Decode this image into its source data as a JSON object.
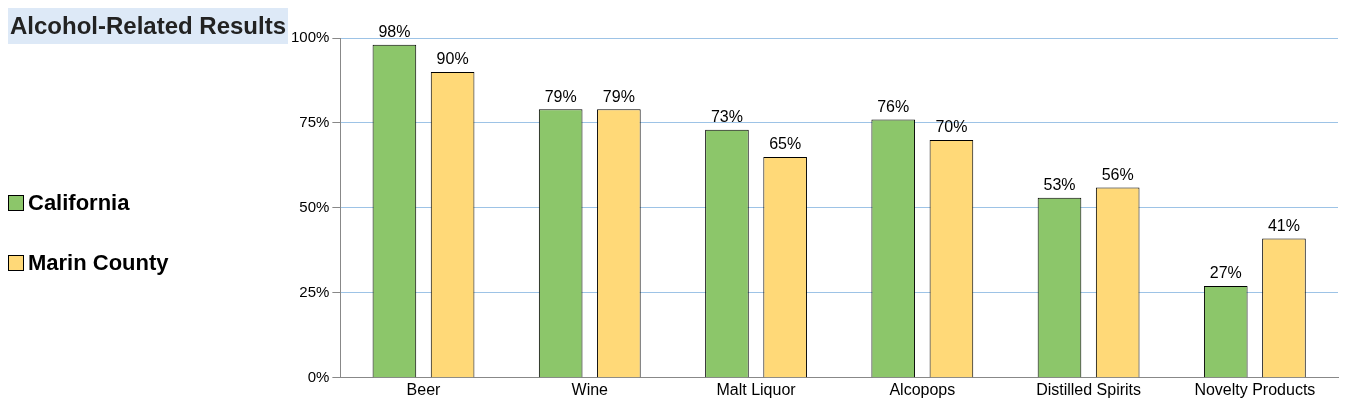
{
  "chart_data": {
    "type": "bar",
    "title": "Alcohol-Related Results",
    "categories": [
      "Beer",
      "Wine",
      "Malt Liquor",
      "Alcopops",
      "Distilled Spirits",
      "Novelty Products"
    ],
    "series": [
      {
        "name": "California",
        "color": "#8cc66a",
        "values": [
          98,
          79,
          73,
          76,
          53,
          27
        ],
        "value_labels": [
          "98%",
          "79%",
          "73%",
          "76%",
          "53%",
          "27%"
        ]
      },
      {
        "name": "Marin County",
        "color": "#ffd978",
        "values": [
          90,
          79,
          65,
          70,
          56,
          41
        ],
        "value_labels": [
          "90%",
          "79%",
          "65%",
          "70%",
          "56%",
          "41%"
        ]
      }
    ],
    "ylim": [
      0,
      100
    ],
    "yticks": [
      {
        "value": 0,
        "label": "0%"
      },
      {
        "value": 25,
        "label": "25%"
      },
      {
        "value": 50,
        "label": "50%"
      },
      {
        "value": 75,
        "label": "75%"
      },
      {
        "value": 100,
        "label": "100%"
      }
    ],
    "grid": "y",
    "legend": "left"
  }
}
